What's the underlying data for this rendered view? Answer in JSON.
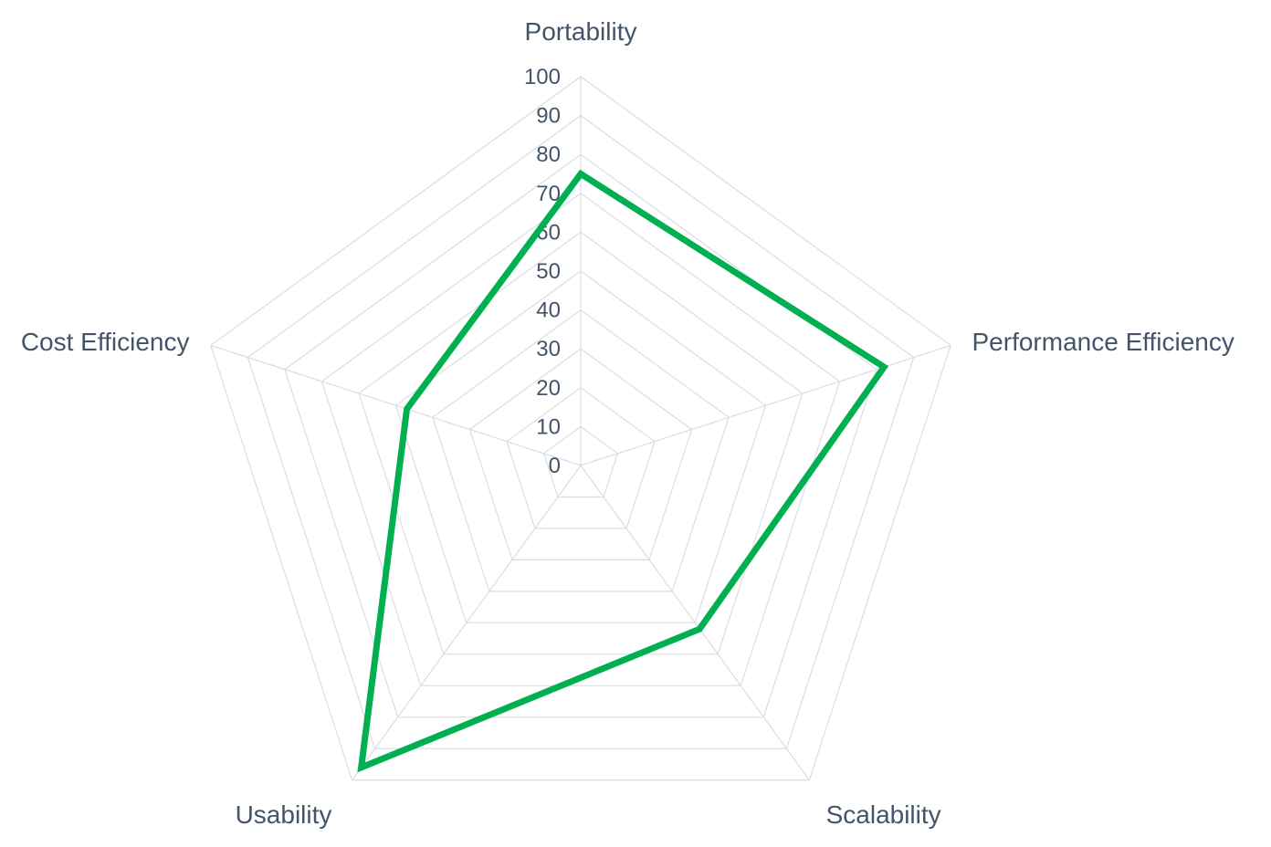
{
  "chart_data": {
    "type": "radar",
    "title": "",
    "categories": [
      "Portability",
      "Performance Efficiency",
      "Scalability",
      "Usability",
      "Cost Efficiency"
    ],
    "series": [
      {
        "values": [
          75,
          82,
          52,
          96,
          47
        ],
        "color": "#00b050"
      }
    ],
    "rlim": [
      0,
      100
    ],
    "ticks": [
      "0",
      "10",
      "20",
      "30",
      "40",
      "50",
      "60",
      "70",
      "80",
      "90",
      "100"
    ],
    "grid": true,
    "legend": "none",
    "colors": {
      "grid": "#d9dde2",
      "text": "#44546a"
    }
  }
}
